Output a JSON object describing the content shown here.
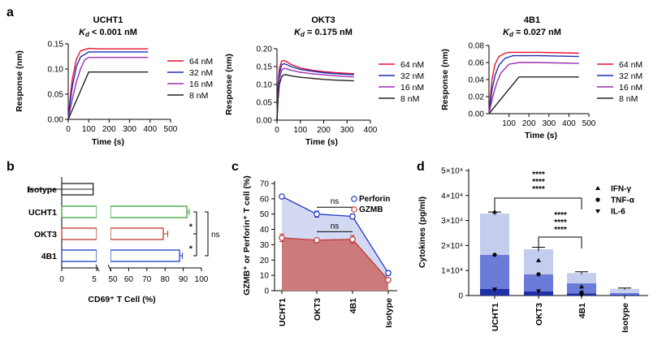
{
  "panels": {
    "a": "a",
    "b": "b",
    "c": "c",
    "d": "d"
  },
  "colors": {
    "c64": "#e8112d",
    "c32": "#1c2fb4",
    "c16": "#9b2fae",
    "c8": "#222222",
    "green": "#3aa33a",
    "red": "#c0392b",
    "blue": "#1f3fbf",
    "perforin": "#2338c4",
    "gzmb": "#c23a3a",
    "ifn": "#c5cdee",
    "tnf": "#6b7bd8",
    "il6": "#1e2fa8",
    "isoBar": "#c9d0ec"
  },
  "chart_data": [
    {
      "type": "line",
      "panel": "a",
      "title": "UCHT1",
      "subtitle": "K_d < 0.001 nM",
      "subtitle_parts": {
        "k": "K",
        "sub": "d",
        "rest": " < 0.001 nM"
      },
      "xlabel": "Time (s)",
      "ylabel": "Response (nm)",
      "xlim": [
        0,
        500
      ],
      "ylim": [
        0,
        0.15
      ],
      "xticks": [
        "0",
        "100",
        "200",
        "300",
        "400",
        "500"
      ],
      "yticks": [
        "0.00",
        "0.05",
        "0.10",
        "0.15"
      ],
      "series": [
        {
          "name": "64 nM",
          "x": [
            0,
            10,
            20,
            40,
            60,
            100,
            150,
            250,
            390
          ],
          "y": [
            0,
            0.045,
            0.08,
            0.12,
            0.136,
            0.141,
            0.14,
            0.14,
            0.14
          ]
        },
        {
          "name": "32 nM",
          "x": [
            0,
            10,
            20,
            40,
            60,
            100,
            150,
            250,
            390
          ],
          "y": [
            0,
            0.035,
            0.065,
            0.105,
            0.124,
            0.134,
            0.134,
            0.134,
            0.134
          ]
        },
        {
          "name": "16 nM",
          "x": [
            0,
            10,
            20,
            40,
            60,
            80,
            100,
            150,
            250,
            390
          ],
          "y": [
            0,
            0.02,
            0.04,
            0.075,
            0.1,
            0.118,
            0.123,
            0.123,
            0.123,
            0.123
          ]
        },
        {
          "name": "8 nM",
          "x": [
            0,
            100,
            150,
            250,
            390
          ],
          "y": [
            0,
            0.094,
            0.094,
            0.094,
            0.094
          ]
        }
      ]
    },
    {
      "type": "line",
      "panel": "a",
      "title": "OKT3",
      "subtitle": "K_d = 0.175 nM",
      "subtitle_parts": {
        "k": "K",
        "sub": "d",
        "rest": " = 0.175 nM"
      },
      "xlabel": "Time (s)",
      "ylabel": "Response (nm)",
      "xlim": [
        0,
        400
      ],
      "ylim": [
        0,
        0.2
      ],
      "xticks": [
        "0",
        "100",
        "200",
        "300",
        "400"
      ],
      "yticks": [
        "0.00",
        "0.05",
        "0.10",
        "0.15",
        "0.20"
      ],
      "series": [
        {
          "name": "64 nM",
          "x": [
            0,
            5,
            10,
            20,
            30,
            40,
            60,
            100,
            150,
            200,
            250,
            330
          ],
          "y": [
            0,
            0.1,
            0.145,
            0.165,
            0.167,
            0.164,
            0.156,
            0.146,
            0.14,
            0.136,
            0.133,
            0.13
          ]
        },
        {
          "name": "32 nM",
          "x": [
            0,
            5,
            10,
            20,
            30,
            40,
            60,
            100,
            150,
            200,
            250,
            330
          ],
          "y": [
            0,
            0.09,
            0.13,
            0.155,
            0.158,
            0.156,
            0.15,
            0.142,
            0.137,
            0.133,
            0.13,
            0.127
          ]
        },
        {
          "name": "16 nM",
          "x": [
            0,
            5,
            10,
            20,
            30,
            40,
            60,
            100,
            150,
            200,
            250,
            330
          ],
          "y": [
            0,
            0.075,
            0.115,
            0.14,
            0.145,
            0.144,
            0.14,
            0.134,
            0.13,
            0.127,
            0.124,
            0.121
          ]
        },
        {
          "name": "8 nM",
          "x": [
            0,
            5,
            10,
            20,
            30,
            40,
            60,
            100,
            150,
            200,
            250,
            330
          ],
          "y": [
            0,
            0.06,
            0.1,
            0.122,
            0.127,
            0.127,
            0.124,
            0.12,
            0.117,
            0.114,
            0.112,
            0.11
          ]
        }
      ]
    },
    {
      "type": "line",
      "panel": "a",
      "title": "4B1",
      "subtitle": "K_d = 0.027 nM",
      "subtitle_parts": {
        "k": "K",
        "sub": "d",
        "rest": " = 0.027 nM"
      },
      "xlabel": "Time (s)",
      "ylabel": "Response (nm)",
      "xlim": [
        0,
        500
      ],
      "ylim": [
        0,
        0.08
      ],
      "xticks": [
        "100",
        "200",
        "300",
        "400",
        "500"
      ],
      "yticks": [
        "0.00",
        "0.02",
        "0.04",
        "0.06",
        "0.08"
      ],
      "series": [
        {
          "name": "64 nM",
          "x": [
            0,
            15,
            30,
            50,
            80,
            100,
            150,
            250,
            450
          ],
          "y": [
            0,
            0.04,
            0.058,
            0.067,
            0.071,
            0.072,
            0.072,
            0.072,
            0.071
          ]
        },
        {
          "name": "32 nM",
          "x": [
            0,
            15,
            30,
            50,
            80,
            120,
            150,
            250,
            450
          ],
          "y": [
            0,
            0.028,
            0.045,
            0.057,
            0.065,
            0.068,
            0.068,
            0.068,
            0.067
          ]
        },
        {
          "name": "16 nM",
          "x": [
            0,
            20,
            40,
            60,
            100,
            150,
            250,
            450
          ],
          "y": [
            0,
            0.021,
            0.037,
            0.048,
            0.058,
            0.06,
            0.06,
            0.059
          ]
        },
        {
          "name": "8 nM",
          "x": [
            0,
            150,
            250,
            450
          ],
          "y": [
            0,
            0.043,
            0.043,
            0.043
          ]
        }
      ]
    },
    {
      "type": "bar",
      "panel": "b",
      "orientation": "horizontal",
      "xlabel": "CD69⁺ T Cell (%)",
      "categories": [
        "Isotype",
        "UCHT1",
        "OKT3",
        "4B1"
      ],
      "values": [
        4.5,
        92,
        79,
        88
      ],
      "errors": [
        0.8,
        1.3,
        2.5,
        1.5
      ],
      "xbreak": [
        5,
        50
      ],
      "xticks": [
        "0",
        "5",
        "50",
        "60",
        "70",
        "80",
        "90",
        "100"
      ],
      "significance": [
        {
          "label": "ns",
          "between": [
            "UCHT1",
            "4B1"
          ]
        },
        {
          "label": "*",
          "between": [
            "UCHT1",
            "OKT3"
          ]
        },
        {
          "label": "*",
          "between": [
            "OKT3",
            "4B1"
          ]
        }
      ]
    },
    {
      "type": "area",
      "panel": "c",
      "ylabel": "GZMB⁺ or Perforin⁺ T cell (%)",
      "categories": [
        "UCHT1",
        "OKT3",
        "4B1",
        "Isotype"
      ],
      "ylim": [
        0,
        70
      ],
      "yticks": [
        "0",
        "10",
        "20",
        "30",
        "40",
        "50",
        "60",
        "70"
      ],
      "series": [
        {
          "name": "Perforin",
          "values": [
            61.5,
            50,
            48.5,
            11.5
          ],
          "errors": [
            1.2,
            2,
            1.5,
            1.5
          ]
        },
        {
          "name": "GZMB",
          "values": [
            34.5,
            33,
            33.5,
            7
          ],
          "errors": [
            2.5,
            1,
            2.5,
            1
          ]
        }
      ],
      "significance": [
        {
          "label": "ns",
          "between": [
            "OKT3",
            "4B1"
          ],
          "series": "Perforin"
        },
        {
          "label": "ns",
          "between": [
            "OKT3",
            "4B1"
          ],
          "series": "GZMB"
        }
      ]
    },
    {
      "type": "bar",
      "panel": "d",
      "stacked": true,
      "ylabel": "Cytokines (pg/ml)",
      "categories": [
        "UCHT1",
        "OKT3",
        "4B1",
        "Isotype"
      ],
      "ylim": [
        0,
        50000
      ],
      "yticks": [
        "0",
        "1×10⁴",
        "2×10⁴",
        "3×10⁴",
        "4×10⁴",
        "5×10⁴"
      ],
      "series": [
        {
          "name": "IL-6",
          "values": [
            2700,
            1700,
            900,
            300
          ]
        },
        {
          "name": "TNF-α",
          "values": [
            13600,
            6800,
            4000,
            700
          ]
        },
        {
          "name": "IFN-γ",
          "values": [
            16500,
            10000,
            4100,
            1700
          ]
        }
      ],
      "errors_top": [
        600,
        800,
        500,
        300
      ],
      "points": {
        "IFN-γ": [
          33500,
          14000,
          3500,
          null
        ],
        "TNF-α": [
          16300,
          8500,
          1200,
          null
        ],
        "IL-6": [
          2500,
          1800,
          200,
          null
        ]
      },
      "significance": [
        {
          "labels": [
            "****",
            "****",
            "****"
          ],
          "between": [
            "UCHT1",
            "4B1"
          ]
        },
        {
          "labels": [
            "****",
            "****",
            "****"
          ],
          "between": [
            "OKT3",
            "4B1"
          ]
        }
      ]
    }
  ]
}
